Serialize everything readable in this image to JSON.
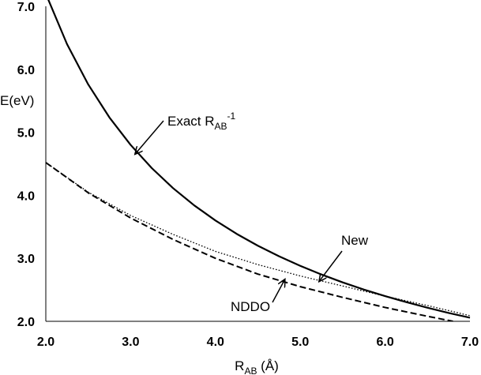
{
  "chart_data": {
    "type": "line",
    "xlabel": {
      "main": "R",
      "sub": "AB",
      "tail": " (Å)"
    },
    "ylabel": "E(eV)",
    "xlim": [
      2.0,
      7.0
    ],
    "ylim": [
      2.0,
      7.0
    ],
    "xticks": [
      "2.0",
      "3.0",
      "4.0",
      "5.0",
      "6.0",
      "7.0"
    ],
    "yticks": [
      "2.0",
      "3.0",
      "4.0",
      "5.0",
      "6.0",
      "7.0"
    ],
    "grid": false,
    "series": [
      {
        "name": "Exact",
        "style": "solid",
        "x": [
          2.0,
          2.25,
          2.5,
          2.75,
          3.0,
          3.25,
          3.5,
          3.75,
          4.0,
          4.25,
          4.5,
          4.75,
          5.0,
          5.25,
          5.5,
          5.75,
          6.0,
          6.25,
          6.5,
          6.75,
          7.0
        ],
        "y": [
          7.2,
          6.4,
          5.76,
          5.236,
          4.8,
          4.431,
          4.114,
          3.84,
          3.6,
          3.388,
          3.2,
          3.032,
          2.88,
          2.743,
          2.618,
          2.504,
          2.4,
          2.304,
          2.215,
          2.133,
          2.057
        ]
      },
      {
        "name": "New",
        "style": "dotted",
        "x": [
          2.0,
          2.5,
          3.0,
          3.5,
          4.0,
          4.5,
          5.0,
          5.5,
          6.0,
          6.5,
          7.0
        ],
        "y": [
          4.52,
          4.05,
          3.68,
          3.38,
          3.11,
          2.9,
          2.72,
          2.56,
          2.4,
          2.25,
          2.09
        ]
      },
      {
        "name": "NDDO",
        "style": "dashed",
        "x": [
          2.0,
          2.5,
          3.0,
          3.5,
          4.0,
          4.5,
          5.0,
          5.5,
          6.0,
          6.5,
          6.8
        ],
        "y": [
          4.52,
          4.04,
          3.64,
          3.3,
          3.0,
          2.75,
          2.55,
          2.38,
          2.22,
          2.08,
          2.0
        ]
      }
    ],
    "annotations": [
      {
        "id": "exact",
        "text": "Exact R",
        "sub": "AB",
        "sup": "-1",
        "target": [
          3.05,
          4.65
        ]
      },
      {
        "id": "new",
        "text": "New",
        "target": [
          5.22,
          2.63
        ]
      },
      {
        "id": "nddo",
        "text": "NDDO",
        "target": [
          4.82,
          2.67
        ]
      }
    ]
  }
}
